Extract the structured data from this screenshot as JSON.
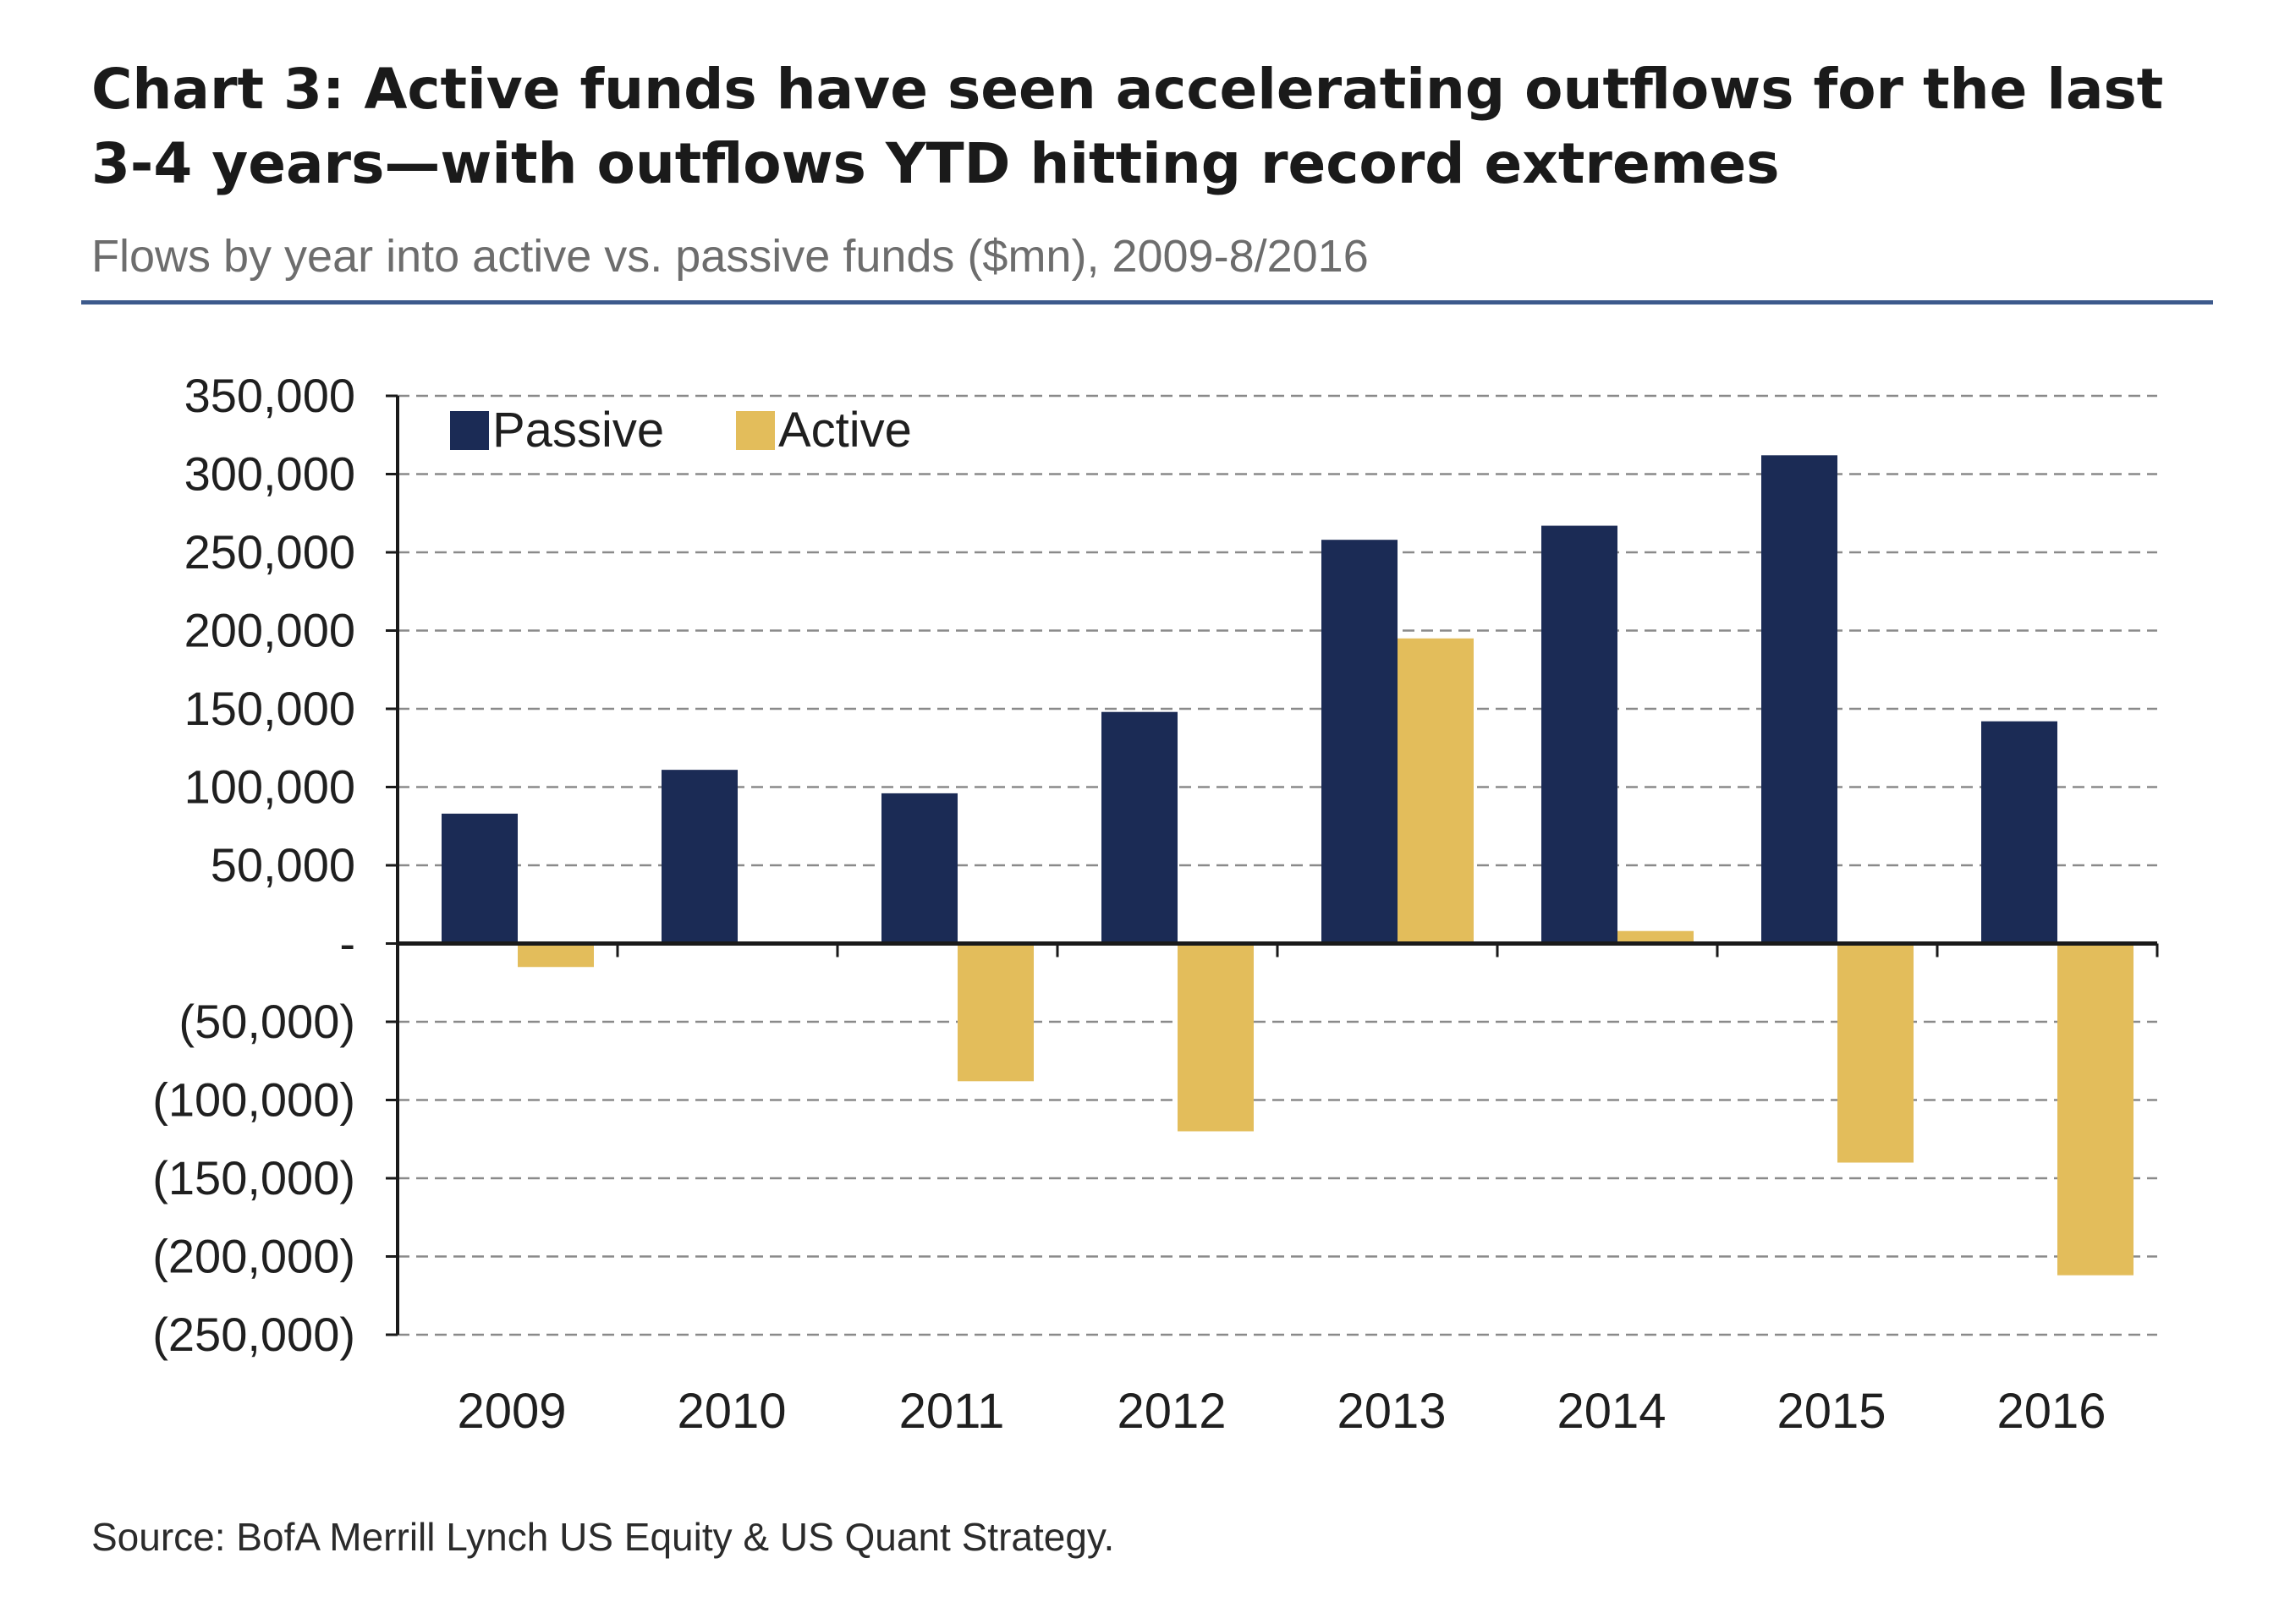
{
  "header": {
    "title": "Chart 3: Active funds have seen accelerating outflows for the last 3-4 years—with outflows YTD hitting record extremes",
    "subtitle": "Flows by year into active vs. passive funds ($mn), 2009-8/2016"
  },
  "footer": {
    "source": "Source: BofA Merrill Lynch US Equity & US Quant Strategy."
  },
  "colors": {
    "passive": "#1b2b55",
    "active": "#e3bd5b",
    "rule": "#3d5a8c",
    "grid": "#8a8a8a",
    "axis": "#1a1a1a"
  },
  "chart_data": {
    "type": "bar",
    "title": "Chart 3: Active funds have seen accelerating outflows for the last 3-4 years—with outflows YTD hitting record extremes",
    "subtitle": "Flows by year into active vs. passive funds ($mn), 2009-8/2016",
    "xlabel": "",
    "ylabel": "",
    "categories": [
      "2009",
      "2010",
      "2011",
      "2012",
      "2013",
      "2014",
      "2015",
      "2016"
    ],
    "series": [
      {
        "name": "Passive",
        "values": [
          83000,
          111000,
          96000,
          148000,
          258000,
          267000,
          312000,
          142000
        ]
      },
      {
        "name": "Active",
        "values": [
          -15000,
          0,
          -88000,
          -120000,
          195000,
          8000,
          -140000,
          -212000
        ]
      }
    ],
    "ylim": [
      -250000,
      350000
    ],
    "yticks": [
      350000,
      300000,
      250000,
      200000,
      150000,
      100000,
      50000,
      0,
      -50000,
      -100000,
      -150000,
      -200000,
      -250000
    ],
    "ytick_labels": [
      "350,000",
      "300,000",
      "250,000",
      "200,000",
      "150,000",
      "100,000",
      "50,000",
      "-",
      "(50,000)",
      "(100,000)",
      "(150,000)",
      "(200,000)",
      "(250,000)"
    ],
    "grid": true,
    "grid_style": "dashed",
    "legend": {
      "placement": "top-left",
      "entries": [
        "Passive",
        "Active"
      ]
    }
  }
}
